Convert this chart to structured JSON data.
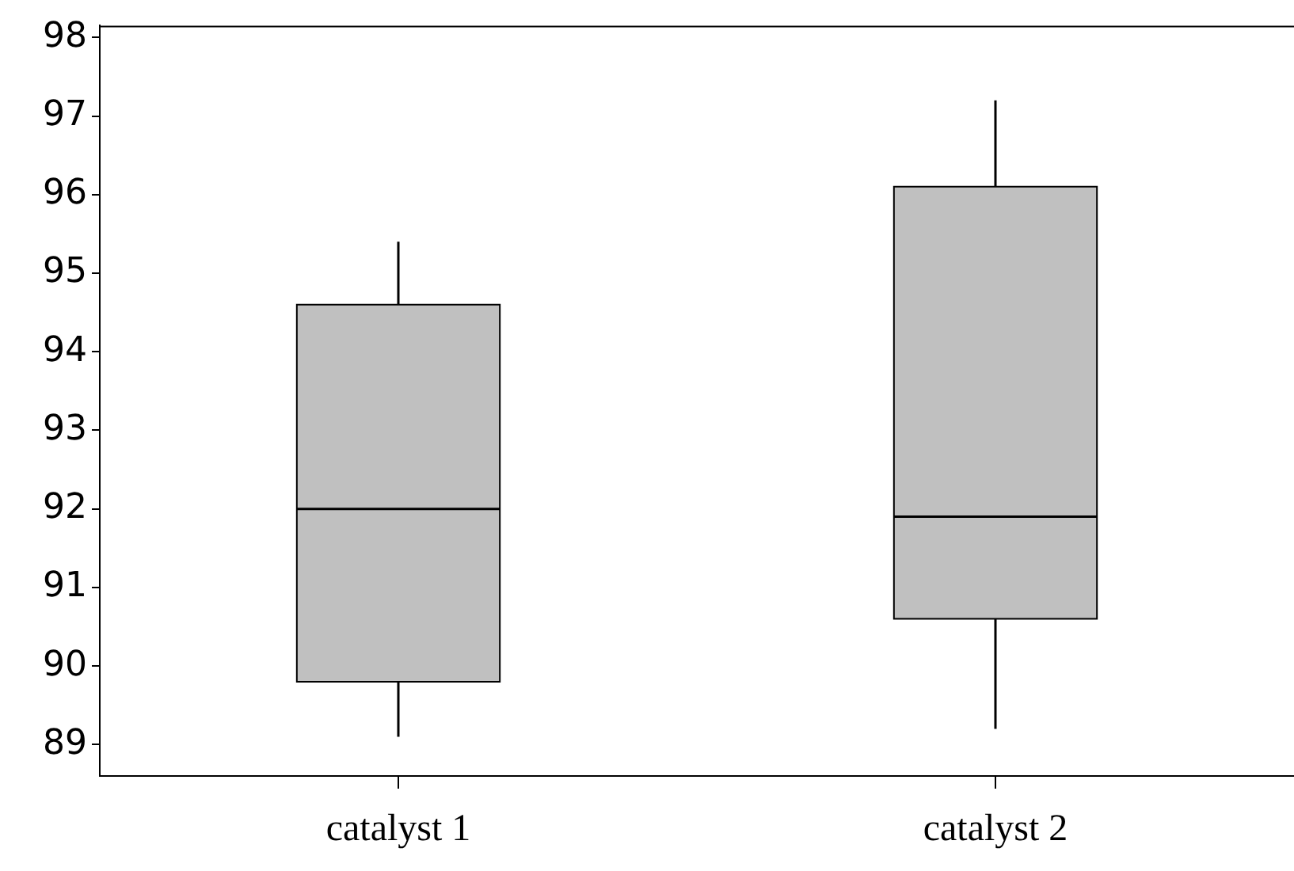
{
  "chart_data": {
    "type": "box",
    "categories": [
      "catalyst 1",
      "catalyst 2"
    ],
    "color": "#c0c0c0",
    "boxes": [
      {
        "low": 89.1,
        "q1": 89.8,
        "median": 92.0,
        "q3": 94.6,
        "high": 95.4
      },
      {
        "low": 89.2,
        "q1": 90.6,
        "median": 91.9,
        "q3": 96.1,
        "high": 97.2
      }
    ],
    "ylim": [
      88.6,
      98.15
    ],
    "yticks": [
      89,
      90,
      91,
      92,
      93,
      94,
      95,
      96,
      97,
      98
    ],
    "grid": false,
    "legend": false
  }
}
